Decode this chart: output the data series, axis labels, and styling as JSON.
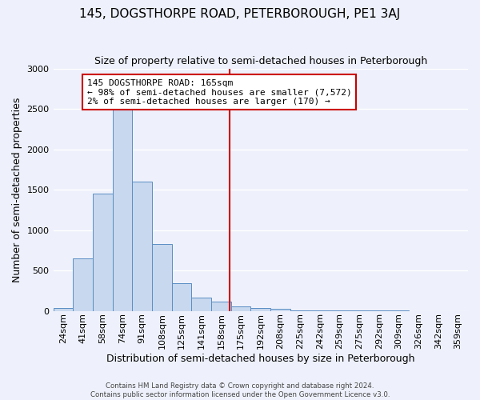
{
  "title": "145, DOGSTHORPE ROAD, PETERBOROUGH, PE1 3AJ",
  "subtitle": "Size of property relative to semi-detached houses in Peterborough",
  "xlabel": "Distribution of semi-detached houses by size in Peterborough",
  "ylabel": "Number of semi-detached properties",
  "bar_labels": [
    "24sqm",
    "41sqm",
    "58sqm",
    "74sqm",
    "91sqm",
    "108sqm",
    "125sqm",
    "141sqm",
    "158sqm",
    "175sqm",
    "192sqm",
    "208sqm",
    "225sqm",
    "242sqm",
    "259sqm",
    "275sqm",
    "292sqm",
    "309sqm",
    "326sqm",
    "342sqm",
    "359sqm"
  ],
  "bar_values": [
    35,
    650,
    1450,
    2500,
    1600,
    830,
    340,
    160,
    110,
    55,
    40,
    25,
    10,
    5,
    3,
    2,
    1,
    1,
    0,
    0,
    0
  ],
  "bar_color": "#c8d8ee",
  "bar_edge_color": "#5b8ec4",
  "ylim": [
    0,
    3000
  ],
  "yticks": [
    0,
    500,
    1000,
    1500,
    2000,
    2500,
    3000
  ],
  "property_line_color": "#cc0000",
  "annotation_title": "145 DOGSTHORPE ROAD: 165sqm",
  "annotation_line1": "← 98% of semi-detached houses are smaller (7,572)",
  "annotation_line2": "2% of semi-detached houses are larger (170) →",
  "annotation_box_facecolor": "#ffffff",
  "annotation_box_edgecolor": "#cc0000",
  "footer1": "Contains HM Land Registry data © Crown copyright and database right 2024.",
  "footer2": "Contains public sector information licensed under the Open Government Licence v3.0.",
  "bg_color": "#eef1fb",
  "grid_color": "#ffffff",
  "title_fontsize": 11,
  "subtitle_fontsize": 9,
  "ylabel_fontsize": 9,
  "xlabel_fontsize": 9,
  "tick_fontsize": 8,
  "annot_fontsize": 8
}
